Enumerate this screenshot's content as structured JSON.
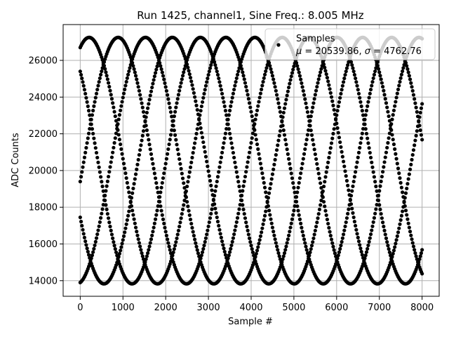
{
  "chart_data": {
    "type": "scatter",
    "title": "Run 1425, channel1, Sine Freq.: 8.005 MHz",
    "xlabel": "Sample #",
    "ylabel": "ADC Counts",
    "xlim": [
      -400,
      8400
    ],
    "ylim": [
      13150,
      27950
    ],
    "x_ticks": [
      0,
      1000,
      2000,
      3000,
      4000,
      5000,
      6000,
      7000,
      8000
    ],
    "y_ticks": [
      14000,
      16000,
      18000,
      20000,
      22000,
      24000,
      26000
    ],
    "x_tick_labels": [
      "0",
      "1000",
      "2000",
      "3000",
      "4000",
      "5000",
      "6000",
      "7000",
      "8000"
    ],
    "y_tick_labels": [
      "14000",
      "16000",
      "18000",
      "20000",
      "22000",
      "24000",
      "26000"
    ],
    "grid": true,
    "legend_position": "top-right",
    "series": [
      {
        "name": "Samples",
        "marker": "dot",
        "color": "#000000",
        "mean": 20539.86,
        "sigma": 4762.76,
        "pattern": {
          "x_start": 0,
          "x_end": 8000,
          "max": 27250,
          "min": 13830,
          "period_samples": 3200,
          "phases": [
            {
              "start_value": 26700,
              "direction": "up"
            },
            {
              "start_value": 25400,
              "direction": "down"
            },
            {
              "start_value": 19400,
              "direction": "up"
            },
            {
              "start_value": 17450,
              "direction": "down"
            },
            {
              "start_value": 13900,
              "direction": "up"
            }
          ]
        }
      }
    ],
    "legend": {
      "label": "Samples",
      "stats": "μ = 20539.86, σ = 4762.76",
      "stats_parts": {
        "mu_symbol": "μ",
        "mu_text": " = 20539.86, ",
        "sigma_symbol": "σ",
        "sigma_text": " = 4762.76"
      }
    }
  },
  "colors": {
    "marker": "#000000",
    "grid": "#b0b0b0",
    "axes": "#000000",
    "legend_border": "#cccccc",
    "background": "#ffffff"
  }
}
